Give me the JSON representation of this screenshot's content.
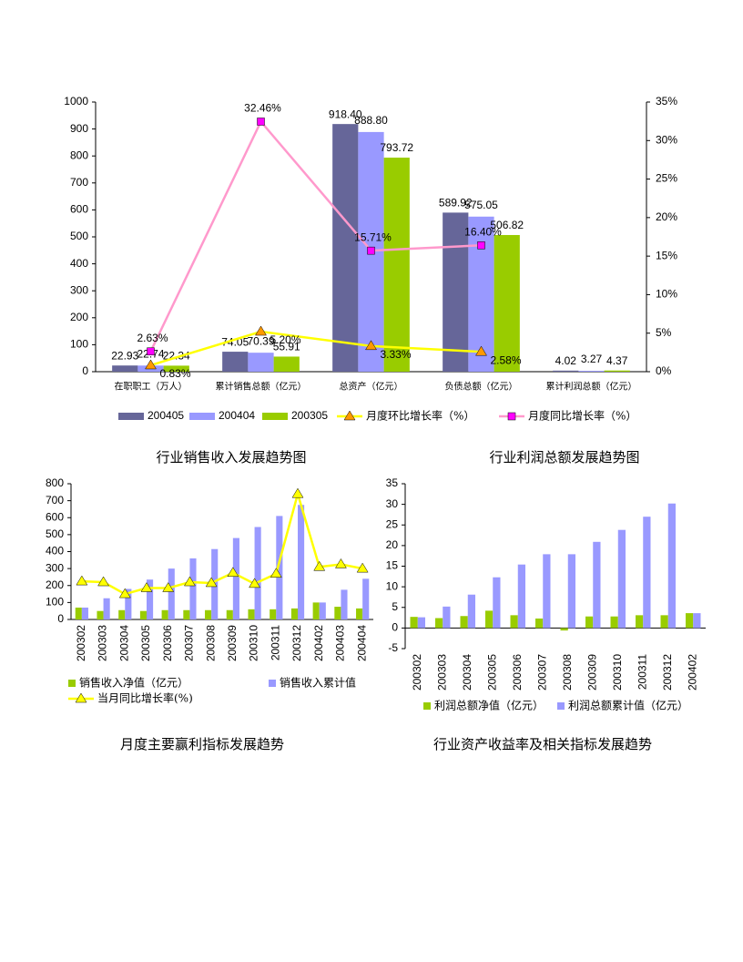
{
  "chart_data": [
    {
      "type": "bar",
      "categories": [
        "在职职工（万人）",
        "累计销售总额（亿元）",
        "总资产（亿元）",
        "负债总额（亿元）",
        "累计利润总额（亿元）"
      ],
      "series": [
        {
          "name": "200405",
          "type": "bar",
          "color": "#666699",
          "values": [
            22.93,
            74.05,
            918.4,
            589.92,
            4.02
          ],
          "value_labels": [
            "22.93",
            "74.05",
            "918.40",
            "589.92",
            "4.02"
          ]
        },
        {
          "name": "200404",
          "type": "bar",
          "color": "#9999ff",
          "values": [
            22.74,
            70.39,
            888.8,
            575.05,
            3.27
          ],
          "value_labels": [
            "22.74",
            "70.39",
            "888.80",
            "575.05",
            "3.27"
          ]
        },
        {
          "name": "200305",
          "type": "bar",
          "color": "#99cc00",
          "values": [
            22.34,
            55.91,
            793.72,
            506.82,
            4.37
          ],
          "value_labels": [
            "22.34",
            "55.91",
            "793.72",
            "506.82",
            "4.37"
          ]
        },
        {
          "name": "月度环比增长率（%）",
          "type": "line",
          "axis": "y2",
          "color": "#ffff00",
          "marker": "triangle",
          "marker_color": "#ff9900",
          "values": [
            0.83,
            5.2,
            3.33,
            2.58,
            null
          ],
          "value_labels": [
            "0.83%",
            "5.20%",
            "3.33%",
            "2.58%",
            null
          ]
        },
        {
          "name": "月度同比增长率（%）",
          "type": "line",
          "axis": "y2",
          "color": "#ff99cc",
          "marker": "square",
          "marker_color": "#ff00ff",
          "values": [
            2.63,
            32.46,
            15.71,
            16.4,
            null
          ],
          "value_labels": [
            "2.63%",
            "32.46%",
            "15.71%",
            "16.40%",
            null
          ]
        }
      ],
      "ylim": [
        0,
        1000
      ],
      "yticks": [
        0,
        100,
        200,
        300,
        400,
        500,
        600,
        700,
        800,
        900,
        1000
      ],
      "y2lim": [
        0,
        35
      ],
      "y2ticks": [
        {
          "value": 0,
          "label": "0%"
        },
        {
          "value": 5,
          "label": "5%"
        },
        {
          "value": 10,
          "label": "10%"
        },
        {
          "value": 15,
          "label": "15%"
        },
        {
          "value": 20,
          "label": "20%"
        },
        {
          "value": 25,
          "label": "25%"
        },
        {
          "value": 30,
          "label": "30%"
        },
        {
          "value": 35,
          "label": "35%"
        }
      ],
      "grid": false
    },
    {
      "type": "bar",
      "title": "行业销售收入发展趋势图",
      "categories": [
        "200302",
        "200303",
        "200304",
        "200305",
        "200306",
        "200307",
        "200308",
        "200309",
        "200310",
        "200311",
        "200312",
        "200402",
        "200403",
        "200404"
      ],
      "series": [
        {
          "name": "销售收入净值（亿元）",
          "type": "bar",
          "color": "#99cc00",
          "values": [
            70,
            50,
            55,
            50,
            55,
            55,
            55,
            55,
            60,
            60,
            65,
            100,
            75,
            65
          ]
        },
        {
          "name": "销售收入累计值",
          "type": "bar",
          "color": "#9999ff",
          "values": [
            70,
            125,
            180,
            235,
            300,
            360,
            415,
            480,
            545,
            610,
            675,
            100,
            175,
            240
          ]
        },
        {
          "name": "当月同比增长率(%)",
          "type": "line",
          "color": "#ffff00",
          "marker": "triangle",
          "marker_color": "#ffff00",
          "values": [
            225,
            220,
            150,
            185,
            185,
            220,
            215,
            275,
            210,
            270,
            740,
            310,
            325,
            300
          ]
        }
      ],
      "ylim": [
        0,
        800
      ],
      "yticks": [
        0,
        100,
        200,
        300,
        400,
        500,
        600,
        700,
        800
      ],
      "grid": false
    },
    {
      "type": "bar",
      "title": "行业利润总额发展趋势图",
      "categories": [
        "200302",
        "200303",
        "200304",
        "200305",
        "200306",
        "200307",
        "200308",
        "200309",
        "200310",
        "200311",
        "200312",
        "200402"
      ],
      "series": [
        {
          "name": "利润总额净值（亿元）",
          "type": "bar",
          "color": "#99cc00",
          "values": [
            2.7,
            2.4,
            2.9,
            4.2,
            3.1,
            2.3,
            -0.6,
            2.8,
            2.8,
            3.1,
            3.1,
            3.6
          ]
        },
        {
          "name": "利润总额累计值（亿元）",
          "type": "bar",
          "color": "#9999ff",
          "values": [
            2.6,
            5.2,
            8.1,
            12.3,
            15.4,
            17.9,
            17.9,
            20.9,
            23.8,
            27.0,
            30.2,
            3.6
          ]
        }
      ],
      "ylim": [
        -5,
        35
      ],
      "yticks": [
        -5,
        0,
        5,
        10,
        15,
        20,
        25,
        30,
        35
      ],
      "grid": false
    }
  ],
  "captions": [
    "月度主要赢利指标发展趋势",
    "行业资产收益率及相关指标发展趋势"
  ]
}
